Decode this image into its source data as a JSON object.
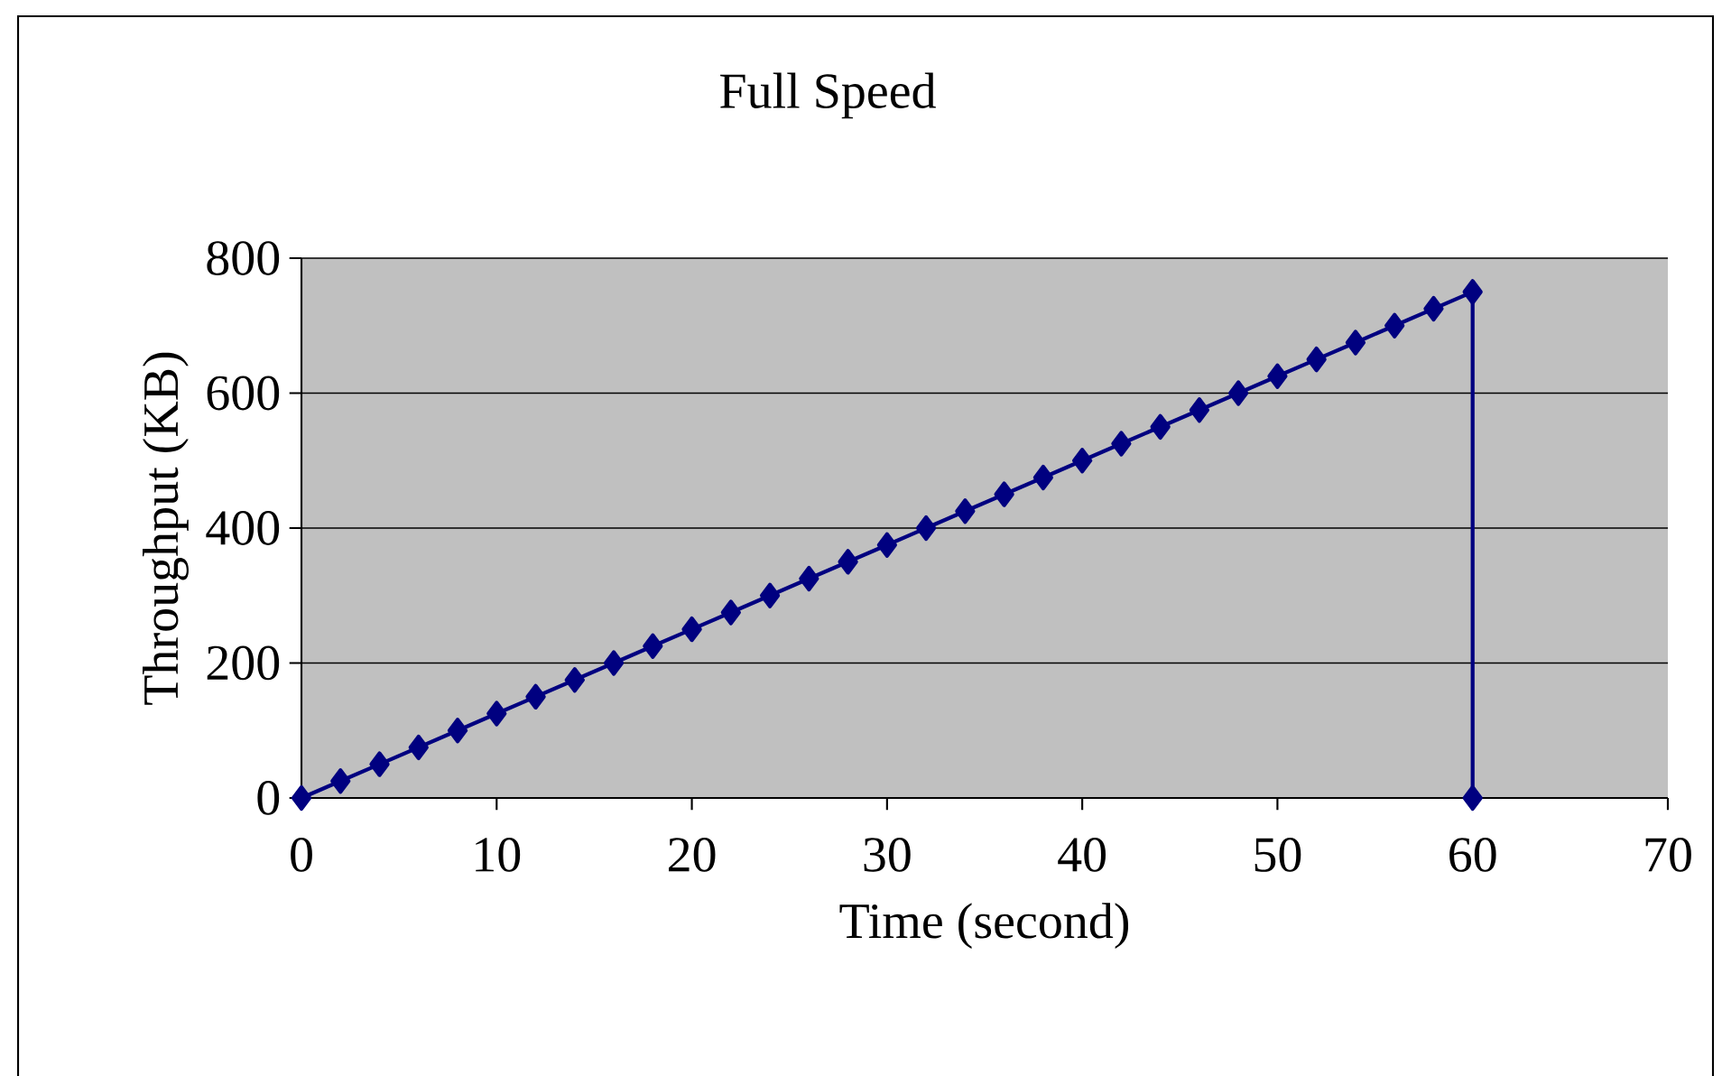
{
  "chart_data": {
    "type": "line",
    "title": "Full Speed",
    "xlabel": "Time (second)",
    "ylabel": "Throughput (KB)",
    "xlim": [
      0,
      70
    ],
    "xticks": [
      0,
      10,
      20,
      30,
      40,
      50,
      60,
      70
    ],
    "ylim": [
      0,
      800
    ],
    "yticks": [
      0,
      200,
      400,
      600,
      800
    ],
    "grid": "y",
    "marker": "diamond",
    "line_style": "solid",
    "series": [
      {
        "color": "#000080",
        "x": [
          0,
          2,
          4,
          6,
          8,
          10,
          12,
          14,
          16,
          18,
          20,
          22,
          24,
          26,
          28,
          30,
          32,
          34,
          36,
          38,
          40,
          42,
          44,
          46,
          48,
          50,
          52,
          54,
          56,
          58,
          60,
          60
        ],
        "values": [
          0,
          25,
          50,
          75,
          100,
          125,
          150,
          175,
          200,
          225,
          250,
          275,
          300,
          325,
          350,
          375,
          400,
          425,
          450,
          475,
          500,
          525,
          550,
          575,
          600,
          625,
          650,
          675,
          700,
          725,
          750,
          0
        ]
      }
    ]
  }
}
